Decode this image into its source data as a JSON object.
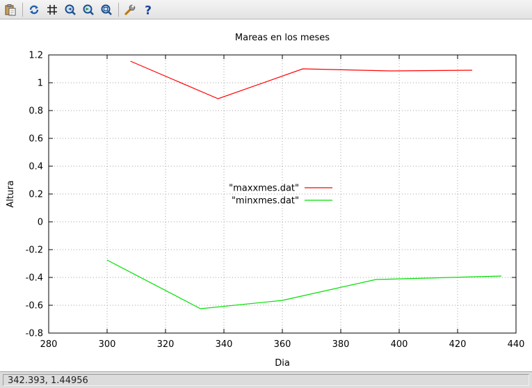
{
  "toolbar": {
    "buttons": [
      {
        "name": "copy-clipboard-button",
        "icon": "clipboard-icon"
      },
      {
        "name": "replot-button",
        "icon": "refresh-icon"
      },
      {
        "name": "grid-button",
        "icon": "grid-icon"
      },
      {
        "name": "zoom-previous-button",
        "icon": "zoom-back-icon"
      },
      {
        "name": "zoom-next-button",
        "icon": "zoom-forward-icon"
      },
      {
        "name": "unzoom-button",
        "icon": "zoom-reset-icon"
      },
      {
        "name": "options-button",
        "icon": "wrench-icon"
      },
      {
        "name": "help-button",
        "icon": "help-icon"
      }
    ]
  },
  "status": {
    "coords": "342.393,  1.44956"
  },
  "chart_data": {
    "type": "line",
    "title": "Mareas en los meses",
    "xlabel": "Dia",
    "ylabel": "Altura",
    "xlim": [
      280,
      440
    ],
    "ylim": [
      -0.8,
      1.2
    ],
    "x_ticks": [
      "280",
      "300",
      "320",
      "340",
      "360",
      "380",
      "400",
      "420",
      "440"
    ],
    "y_ticks": [
      "1.2",
      "1",
      "0.8",
      "0.6",
      "0.4",
      "0.2",
      "0",
      "-0.2",
      "-0.4",
      "-0.6",
      "-0.8"
    ],
    "grid": true,
    "legend_position": "center",
    "series": [
      {
        "name": "\"maxxmes.dat\"",
        "color": "#ff0000",
        "points": [
          [
            308,
            1.155
          ],
          [
            338,
            0.885
          ],
          [
            367,
            1.1
          ],
          [
            397,
            1.085
          ],
          [
            425,
            1.09
          ]
        ]
      },
      {
        "name": "\"minxmes.dat\"",
        "color": "#00e000",
        "points": [
          [
            300,
            -0.275
          ],
          [
            332,
            -0.625
          ],
          [
            360,
            -0.565
          ],
          [
            392,
            -0.415
          ],
          [
            435,
            -0.39
          ]
        ]
      }
    ]
  }
}
